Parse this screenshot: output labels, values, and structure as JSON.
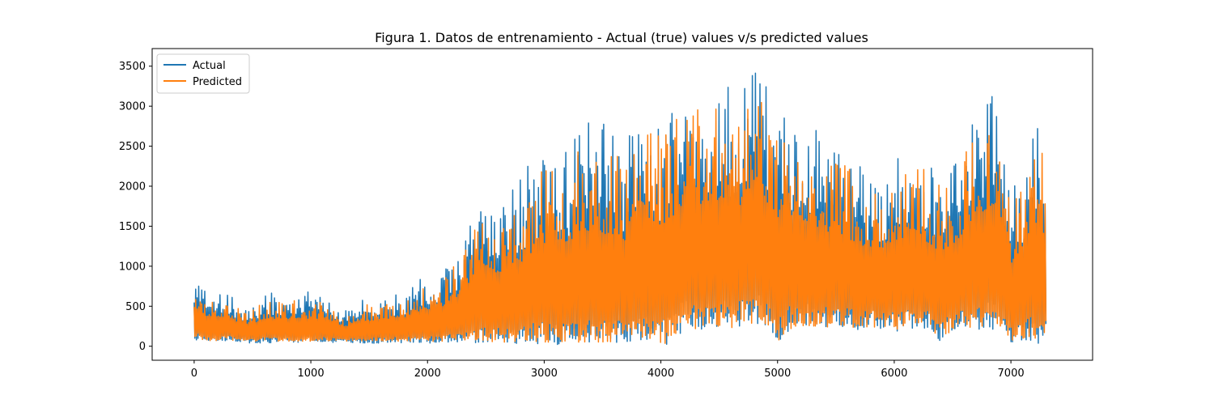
{
  "chart_data": {
    "type": "line",
    "title": "Figura 1. Datos de entrenamiento - Actual (true) values v/s predicted values",
    "xlabel": "",
    "ylabel": "",
    "xlim": [
      -360,
      7700
    ],
    "ylim": [
      -175,
      3720
    ],
    "xticks": [
      0,
      1000,
      2000,
      3000,
      4000,
      5000,
      6000,
      7000
    ],
    "yticks": [
      0,
      500,
      1000,
      1500,
      2000,
      2500,
      3000,
      3500
    ],
    "grid": false,
    "legend": "upper-left",
    "series": [
      {
        "name": "Actual",
        "color": "#1f77b4",
        "x": [
          0,
          100,
          200,
          300,
          400,
          500,
          600,
          700,
          800,
          900,
          1000,
          1100,
          1200,
          1300,
          1400,
          1500,
          1600,
          1700,
          1800,
          1900,
          2000,
          2100,
          2200,
          2300,
          2400,
          2500,
          2600,
          2700,
          2800,
          2900,
          3000,
          3100,
          3200,
          3300,
          3400,
          3500,
          3600,
          3700,
          3800,
          3900,
          4000,
          4100,
          4200,
          4300,
          4400,
          4500,
          4600,
          4700,
          4800,
          4900,
          5000,
          5100,
          5200,
          5300,
          5400,
          5500,
          5600,
          5700,
          5800,
          5900,
          6000,
          6100,
          6200,
          6300,
          6400,
          6500,
          6600,
          6700,
          6800,
          6900,
          7000,
          7100,
          7200,
          7300
        ],
        "high": [
          930,
          820,
          650,
          640,
          520,
          530,
          670,
          660,
          650,
          680,
          700,
          650,
          560,
          450,
          600,
          620,
          650,
          650,
          650,
          820,
          900,
          920,
          1100,
          1300,
          1700,
          2100,
          1800,
          1900,
          2100,
          2400,
          2400,
          2600,
          2400,
          2800,
          2900,
          2800,
          2700,
          2500,
          3000,
          2900,
          2800,
          3200,
          3500,
          3300,
          3300,
          3400,
          3200,
          3300,
          3560,
          3400,
          3100,
          2900,
          3000,
          2800,
          2700,
          2500,
          2400,
          2300,
          2200,
          2200,
          2400,
          2400,
          2500,
          2300,
          2200,
          2300,
          2600,
          3000,
          3300,
          3200,
          2000,
          2300,
          3000,
          2860
        ],
        "low": [
          80,
          60,
          60,
          70,
          50,
          30,
          40,
          40,
          50,
          40,
          50,
          40,
          40,
          50,
          40,
          30,
          40,
          40,
          40,
          40,
          40,
          40,
          40,
          30,
          30,
          30,
          30,
          30,
          30,
          30,
          20,
          20,
          20,
          20,
          20,
          20,
          20,
          20,
          20,
          20,
          10,
          20,
          200,
          200,
          200,
          220,
          200,
          250,
          250,
          250,
          50,
          200,
          200,
          220,
          220,
          200,
          220,
          200,
          220,
          200,
          180,
          200,
          220,
          200,
          40,
          200,
          220,
          200,
          200,
          200,
          40,
          60,
          40,
          10
        ]
      },
      {
        "name": "Predicted",
        "color": "#ff7f0e",
        "x": [
          0,
          100,
          200,
          300,
          400,
          500,
          600,
          700,
          800,
          900,
          1000,
          1100,
          1200,
          1300,
          1400,
          1500,
          1600,
          1700,
          1800,
          1900,
          2000,
          2100,
          2200,
          2300,
          2400,
          2500,
          2600,
          2700,
          2800,
          2900,
          3000,
          3100,
          3200,
          3300,
          3400,
          3500,
          3600,
          3700,
          3800,
          3900,
          4000,
          4100,
          4200,
          4300,
          4400,
          4500,
          4600,
          4700,
          4800,
          4900,
          5000,
          5100,
          5200,
          5300,
          5400,
          5500,
          5600,
          5700,
          5800,
          5900,
          6000,
          6100,
          6200,
          6300,
          6400,
          6500,
          6600,
          6700,
          6800,
          6900,
          7000,
          7100,
          7200,
          7300
        ],
        "high": [
          820,
          620,
          600,
          560,
          450,
          460,
          560,
          560,
          560,
          580,
          560,
          560,
          480,
          380,
          520,
          520,
          560,
          560,
          560,
          700,
          780,
          800,
          950,
          1150,
          1500,
          1800,
          1600,
          1700,
          1850,
          2100,
          2300,
          2400,
          2300,
          2500,
          2600,
          2500,
          2500,
          2350,
          2800,
          2700,
          2700,
          2900,
          3100,
          3000,
          3000,
          3100,
          2900,
          3000,
          3200,
          3100,
          2800,
          2650,
          2700,
          2550,
          2450,
          2300,
          2250,
          2100,
          2050,
          2050,
          2200,
          2200,
          2300,
          2150,
          2050,
          2100,
          2400,
          2750,
          2950,
          2850,
          1800,
          2200,
          2800,
          2450
        ],
        "low": [
          90,
          70,
          70,
          80,
          60,
          50,
          60,
          60,
          60,
          60,
          60,
          60,
          60,
          60,
          60,
          50,
          60,
          60,
          60,
          60,
          60,
          60,
          60,
          50,
          50,
          50,
          50,
          50,
          50,
          50,
          40,
          40,
          40,
          40,
          40,
          40,
          40,
          40,
          40,
          40,
          30,
          40,
          200,
          200,
          220,
          240,
          220,
          260,
          260,
          260,
          60,
          220,
          220,
          240,
          240,
          220,
          240,
          220,
          240,
          220,
          200,
          220,
          240,
          220,
          60,
          220,
          240,
          220,
          220,
          220,
          50,
          80,
          60,
          30
        ]
      }
    ]
  }
}
